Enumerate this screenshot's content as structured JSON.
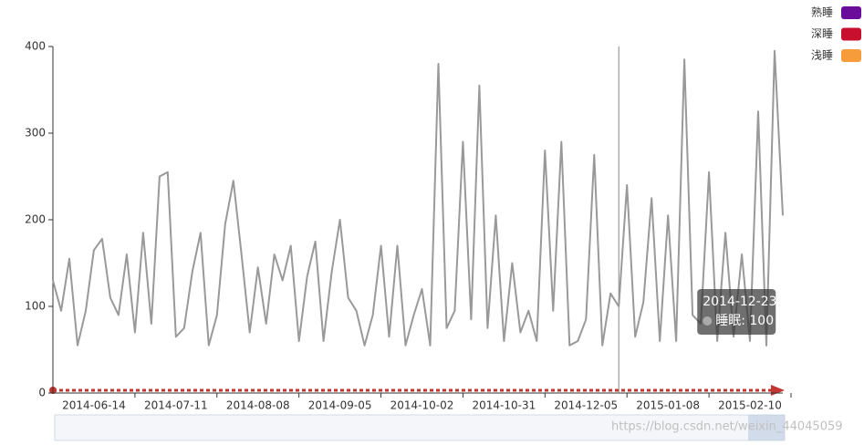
{
  "chart_data": {
    "type": "line",
    "categories": [
      null,
      null,
      null,
      null,
      null,
      "2014-06-14",
      null,
      null,
      null,
      null,
      null,
      null,
      null,
      null,
      null,
      "2014-07-11",
      null,
      null,
      null,
      null,
      null,
      null,
      null,
      null,
      null,
      "2014-08-08",
      null,
      null,
      null,
      null,
      null,
      null,
      null,
      null,
      null,
      "2014-09-05",
      null,
      null,
      null,
      null,
      null,
      null,
      null,
      null,
      null,
      "2014-10-02",
      null,
      null,
      null,
      null,
      null,
      null,
      null,
      null,
      null,
      "2014-10-31",
      null,
      null,
      null,
      null,
      null,
      null,
      null,
      null,
      null,
      "2014-12-05",
      null,
      null,
      null,
      null,
      null,
      null,
      null,
      null,
      null,
      "2015-01-08",
      null,
      null,
      null,
      null,
      null,
      null,
      null,
      null,
      null,
      "2015-02-10",
      null,
      null,
      null,
      null
    ],
    "series": [
      {
        "name": "睡眠",
        "color": "#999999",
        "values": [
          130,
          95,
          155,
          55,
          95,
          165,
          178,
          110,
          90,
          160,
          70,
          185,
          80,
          250,
          255,
          65,
          75,
          140,
          185,
          55,
          90,
          195,
          245,
          160,
          70,
          145,
          80,
          160,
          130,
          170,
          60,
          135,
          175,
          60,
          140,
          200,
          110,
          95,
          55,
          90,
          170,
          65,
          170,
          55,
          90,
          120,
          55,
          380,
          75,
          95,
          290,
          85,
          355,
          75,
          205,
          60,
          150,
          70,
          95,
          60,
          280,
          95,
          290,
          55,
          60,
          85,
          275,
          55,
          115,
          100,
          240,
          65,
          105,
          225,
          60,
          205,
          60,
          385,
          90,
          80,
          255,
          60,
          185,
          65,
          160,
          60,
          325,
          55,
          395,
          205
        ]
      }
    ],
    "ylim": [
      0,
      400
    ],
    "yticks": [
      0,
      100,
      200,
      300,
      400
    ],
    "legend": [
      {
        "name": "熟睡",
        "color": "#6a0d9a"
      },
      {
        "name": "深睡",
        "color": "#c8102e"
      },
      {
        "name": "浅睡",
        "color": "#f79c3a"
      }
    ],
    "tooltip": {
      "title": "2014-12-23",
      "text": "睡眠: 100",
      "index": 69
    },
    "watermark": "https://blog.csdn.net/weixin_44045059"
  }
}
